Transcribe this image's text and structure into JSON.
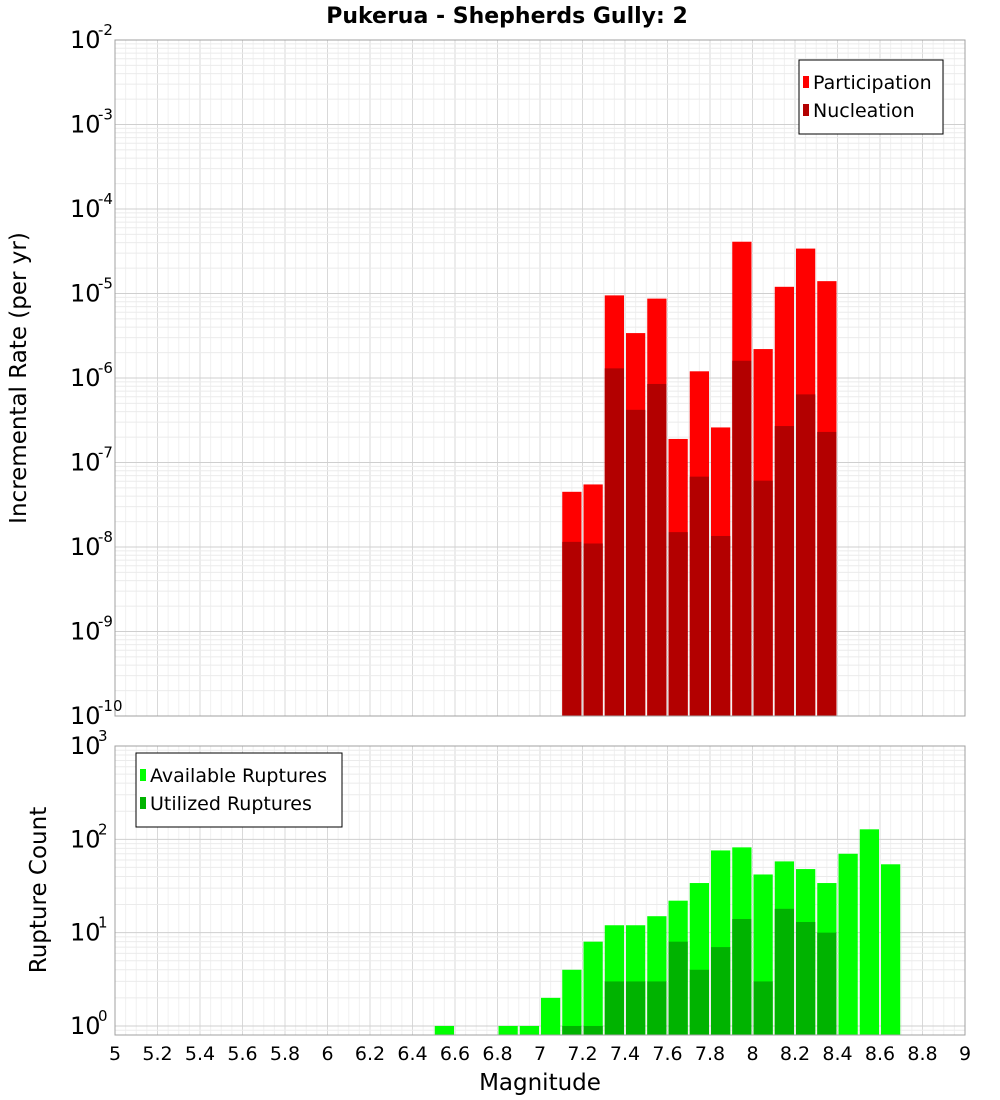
{
  "chart_data": [
    {
      "type": "bar",
      "title": "Pukerua - Shepherds Gully: 2",
      "ylabel": "Incremental Rate (per yr)",
      "yscale": "log",
      "ylim": [
        1e-10,
        0.01
      ],
      "xlim": [
        5,
        9
      ],
      "grid": true,
      "legend_position": "top-right",
      "bar_width": 0.1,
      "colors": {
        "Participation": "#ff0000",
        "Nucleation": "#b30000"
      },
      "x": [
        7.15,
        7.25,
        7.35,
        7.45,
        7.55,
        7.65,
        7.75,
        7.85,
        7.95,
        8.05,
        8.15,
        8.25,
        8.35
      ],
      "series": [
        {
          "name": "Participation",
          "values": [
            4.5e-08,
            5.5e-08,
            9.5e-06,
            3.4e-06,
            8.7e-06,
            1.9e-07,
            1.2e-06,
            2.6e-07,
            4.1e-05,
            2.2e-06,
            1.2e-05,
            3.4e-05,
            1.4e-05
          ]
        },
        {
          "name": "Nucleation",
          "values": [
            1.15e-08,
            1.1e-08,
            1.3e-06,
            4.2e-07,
            8.5e-07,
            1.5e-08,
            6.8e-08,
            1.35e-08,
            1.6e-06,
            6.1e-08,
            2.7e-07,
            6.4e-07,
            2.3e-07
          ]
        }
      ]
    },
    {
      "type": "bar",
      "xlabel": "Magnitude",
      "ylabel": "Rupture Count",
      "yscale": "log",
      "ylim": [
        0.8,
        1000
      ],
      "xlim": [
        5,
        9
      ],
      "grid": true,
      "legend_position": "top-left",
      "bar_width": 0.1,
      "colors": {
        "Available Ruptures": "#00ff00",
        "Utilized Ruptures": "#00b300"
      },
      "x_tick_labels": [
        "5",
        "5.2",
        "5.4",
        "5.6",
        "5.8",
        "6",
        "6.2",
        "6.4",
        "6.6",
        "6.8",
        "7",
        "7.2",
        "7.4",
        "7.6",
        "7.8",
        "8",
        "8.2",
        "8.4",
        "8.6",
        "8.8",
        "9"
      ],
      "series": [
        {
          "name": "Available Ruptures",
          "x": [
            6.55,
            6.85,
            6.95,
            7.05,
            7.15,
            7.25,
            7.35,
            7.45,
            7.55,
            7.65,
            7.75,
            7.85,
            7.95,
            8.05,
            8.15,
            8.25,
            8.35,
            8.45,
            8.55,
            8.65
          ],
          "values": [
            1,
            1,
            1,
            2,
            4,
            8,
            12,
            12,
            15,
            22,
            34,
            76,
            82,
            42,
            58,
            48,
            34,
            70,
            128,
            54
          ]
        },
        {
          "name": "Utilized Ruptures",
          "x": [
            7.15,
            7.25,
            7.35,
            7.45,
            7.55,
            7.65,
            7.75,
            7.85,
            7.95,
            8.05,
            8.15,
            8.25,
            8.35
          ],
          "values": [
            1,
            1,
            3,
            3,
            3,
            8,
            4,
            7,
            14,
            3,
            18,
            13,
            10
          ]
        }
      ]
    }
  ]
}
